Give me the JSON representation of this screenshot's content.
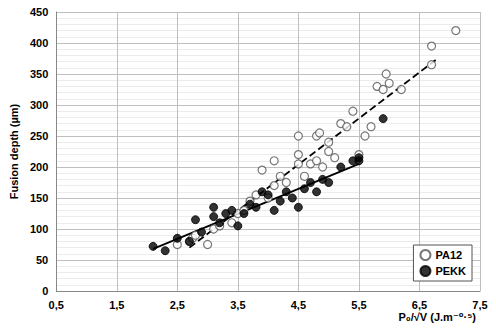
{
  "chart_data": {
    "type": "scatter",
    "x_label": "P₀/√V (J.m⁻⁰·⁵)",
    "y_label": "Fusion depth (µm)",
    "xlim": [
      0.5,
      7.5
    ],
    "xticks": [
      {
        "value": 0.5,
        "label": "0,5"
      },
      {
        "value": 1.5,
        "label": "1,5"
      },
      {
        "value": 2.5,
        "label": "2,5"
      },
      {
        "value": 3.5,
        "label": "3,5"
      },
      {
        "value": 4.5,
        "label": "4,5"
      },
      {
        "value": 5.5,
        "label": "5,5"
      },
      {
        "value": 6.5,
        "label": "6,5"
      },
      {
        "value": 7.5,
        "label": "7,5"
      }
    ],
    "ylim": [
      0,
      450
    ],
    "yticks": [
      0,
      50,
      100,
      150,
      200,
      250,
      300,
      350,
      400,
      450
    ],
    "grid": true,
    "legend": "lower right",
    "series": [
      {
        "name": "PA12",
        "color": "#555555",
        "marker": "open circle",
        "line_style": "dashed",
        "x": [
          2.5,
          2.7,
          2.75,
          2.8,
          3.0,
          3.1,
          3.2,
          3.4,
          3.5,
          3.6,
          3.7,
          3.8,
          3.9,
          4.0,
          4.1,
          4.1,
          4.2,
          4.3,
          4.5,
          4.5,
          4.5,
          4.6,
          4.7,
          4.8,
          4.8,
          4.85,
          4.9,
          5.0,
          5.0,
          5.1,
          5.2,
          5.3,
          5.4,
          5.5,
          5.6,
          5.7,
          5.8,
          5.9,
          5.95,
          6.0,
          6.2,
          6.7,
          6.7,
          7.1
        ],
        "values": [
          75,
          80,
          85,
          90,
          75,
          100,
          105,
          110,
          125,
          130,
          145,
          155,
          195,
          150,
          170,
          210,
          185,
          175,
          205,
          220,
          250,
          185,
          205,
          210,
          250,
          255,
          200,
          240,
          225,
          215,
          270,
          265,
          290,
          220,
          250,
          265,
          330,
          325,
          350,
          335,
          325,
          395,
          365,
          420
        ],
        "trend": {
          "x": [
            2.7,
            6.8
          ],
          "values": [
            70,
            375
          ]
        }
      },
      {
        "name": "PEKK",
        "color": "#000000",
        "marker": "filled circle",
        "line_style": "solid",
        "x": [
          2.1,
          2.3,
          2.5,
          2.7,
          2.8,
          2.9,
          3.1,
          3.1,
          3.2,
          3.3,
          3.4,
          3.5,
          3.6,
          3.7,
          3.8,
          3.9,
          4.0,
          4.1,
          4.2,
          4.3,
          4.4,
          4.5,
          4.6,
          4.7,
          4.8,
          4.9,
          5.0,
          5.2,
          5.4,
          5.5,
          5.5,
          5.9
        ],
        "values": [
          72,
          65,
          85,
          80,
          115,
          95,
          120,
          135,
          110,
          125,
          130,
          105,
          125,
          140,
          135,
          160,
          155,
          130,
          145,
          160,
          150,
          135,
          165,
          175,
          160,
          180,
          175,
          200,
          210,
          215,
          210,
          278
        ],
        "trend": {
          "x": [
            2.1,
            5.5
          ],
          "values": [
            68,
            205
          ]
        }
      }
    ]
  }
}
